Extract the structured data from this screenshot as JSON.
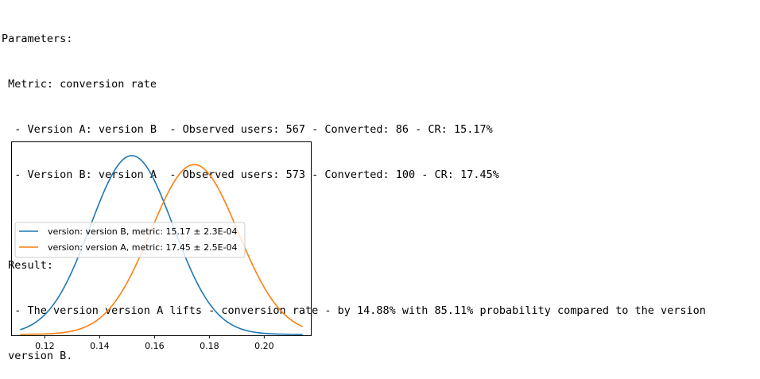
{
  "output": {
    "params_header": "Parameters:",
    "metric_line": " Metric: conversion rate",
    "version_a_line": "  - Version A: version B  - Observed users: 567 - Converted: 86 - CR: 15.17%",
    "version_b_line": "  - Version B: version A  - Observed users: 573 - Converted: 100 - CR: 17.45%",
    "result_header": " Result:",
    "result_line1": "  - The version version A lifts - conversion rate - by 14.88% with 85.11% probability compared to the version",
    "result_line2": " version B."
  },
  "chart_data": {
    "type": "line",
    "xlim": [
      0.108,
      0.217
    ],
    "ylim": [
      0,
      1.08
    ],
    "x_ticks": [
      0.12,
      0.14,
      0.16,
      0.18,
      0.2
    ],
    "x_tick_labels": [
      "0.12",
      "0.14",
      "0.16",
      "0.18",
      "0.20"
    ],
    "y_ticks_shown": false,
    "grid": false,
    "legend_position": "center-left",
    "series": [
      {
        "name": "version: version B, metric: 15.17 ± 2.3E-04",
        "color": "#1f77b4",
        "mean": 0.1517,
        "sd": 0.0151
      },
      {
        "name": "version: version A, metric: 17.45 ± 2.5E-04",
        "color": "#ff7f0e",
        "mean": 0.1745,
        "sd": 0.0159
      }
    ],
    "x_range": [
      0.111,
      0.214
    ],
    "series_peak_ratio": [
      1.0,
      0.95
    ]
  }
}
